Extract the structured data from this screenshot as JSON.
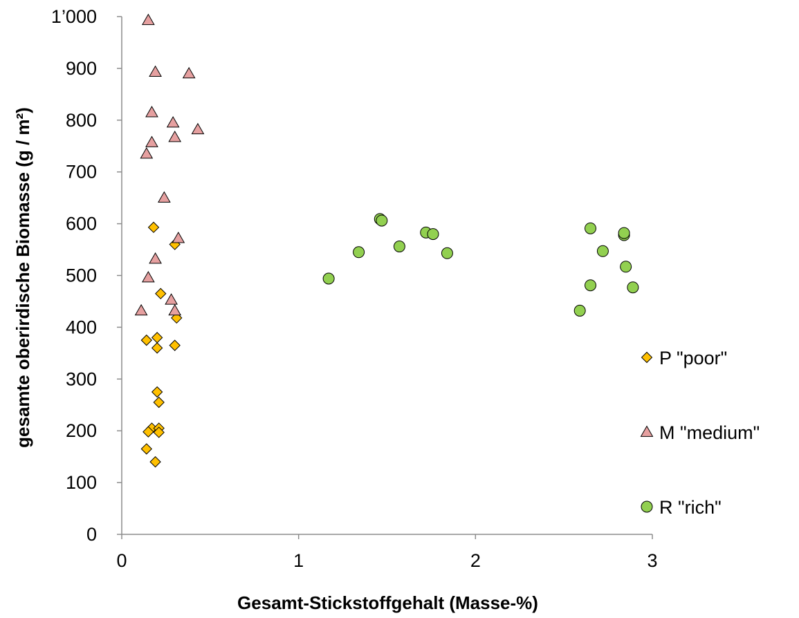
{
  "chart_data": {
    "type": "scatter",
    "title": "",
    "xlabel": "Gesamt-Stickstoffgehalt (Masse-%)",
    "ylabel": "gesamte oberirdische Biomasse (g / m²)",
    "xlim": [
      0,
      3
    ],
    "ylim": [
      0,
      1000
    ],
    "x_ticks": [
      0,
      1,
      2,
      3
    ],
    "x_tick_labels": [
      "0",
      "1",
      "2",
      "3"
    ],
    "y_ticks": [
      0,
      100,
      200,
      300,
      400,
      500,
      600,
      700,
      800,
      900,
      1000
    ],
    "y_tick_labels": [
      "0",
      "100",
      "200",
      "300",
      "400",
      "500",
      "600",
      "700",
      "800",
      "900",
      "1’000"
    ],
    "grid": false,
    "legend_position": "right",
    "series": [
      {
        "name": "P \"poor\"",
        "marker": "diamond",
        "color": "#FFC000",
        "points": [
          [
            0.18,
            593
          ],
          [
            0.3,
            560
          ],
          [
            0.22,
            465
          ],
          [
            0.31,
            418
          ],
          [
            0.14,
            375
          ],
          [
            0.2,
            380
          ],
          [
            0.3,
            365
          ],
          [
            0.2,
            360
          ],
          [
            0.2,
            275
          ],
          [
            0.21,
            255
          ],
          [
            0.17,
            205
          ],
          [
            0.21,
            205
          ],
          [
            0.15,
            198
          ],
          [
            0.21,
            197
          ],
          [
            0.14,
            165
          ],
          [
            0.19,
            140
          ]
        ]
      },
      {
        "name": "M \"medium\"",
        "marker": "triangle",
        "color": "#E6A0A0",
        "points": [
          [
            0.15,
            993
          ],
          [
            0.19,
            893
          ],
          [
            0.38,
            890
          ],
          [
            0.17,
            815
          ],
          [
            0.29,
            795
          ],
          [
            0.43,
            782
          ],
          [
            0.3,
            767
          ],
          [
            0.17,
            757
          ],
          [
            0.14,
            735
          ],
          [
            0.24,
            650
          ],
          [
            0.32,
            572
          ],
          [
            0.19,
            532
          ],
          [
            0.15,
            496
          ],
          [
            0.28,
            453
          ],
          [
            0.3,
            432
          ],
          [
            0.11,
            432
          ]
        ]
      },
      {
        "name": "R \"rich\"",
        "marker": "circle",
        "color": "#92D050",
        "points": [
          [
            1.17,
            494
          ],
          [
            1.34,
            545
          ],
          [
            1.46,
            609
          ],
          [
            1.47,
            606
          ],
          [
            1.57,
            556
          ],
          [
            1.72,
            583
          ],
          [
            1.76,
            580
          ],
          [
            1.84,
            543
          ],
          [
            2.59,
            432
          ],
          [
            2.65,
            481
          ],
          [
            2.65,
            591
          ],
          [
            2.72,
            547
          ],
          [
            2.84,
            578
          ],
          [
            2.84,
            582
          ],
          [
            2.85,
            517
          ],
          [
            2.89,
            477
          ]
        ]
      }
    ]
  }
}
